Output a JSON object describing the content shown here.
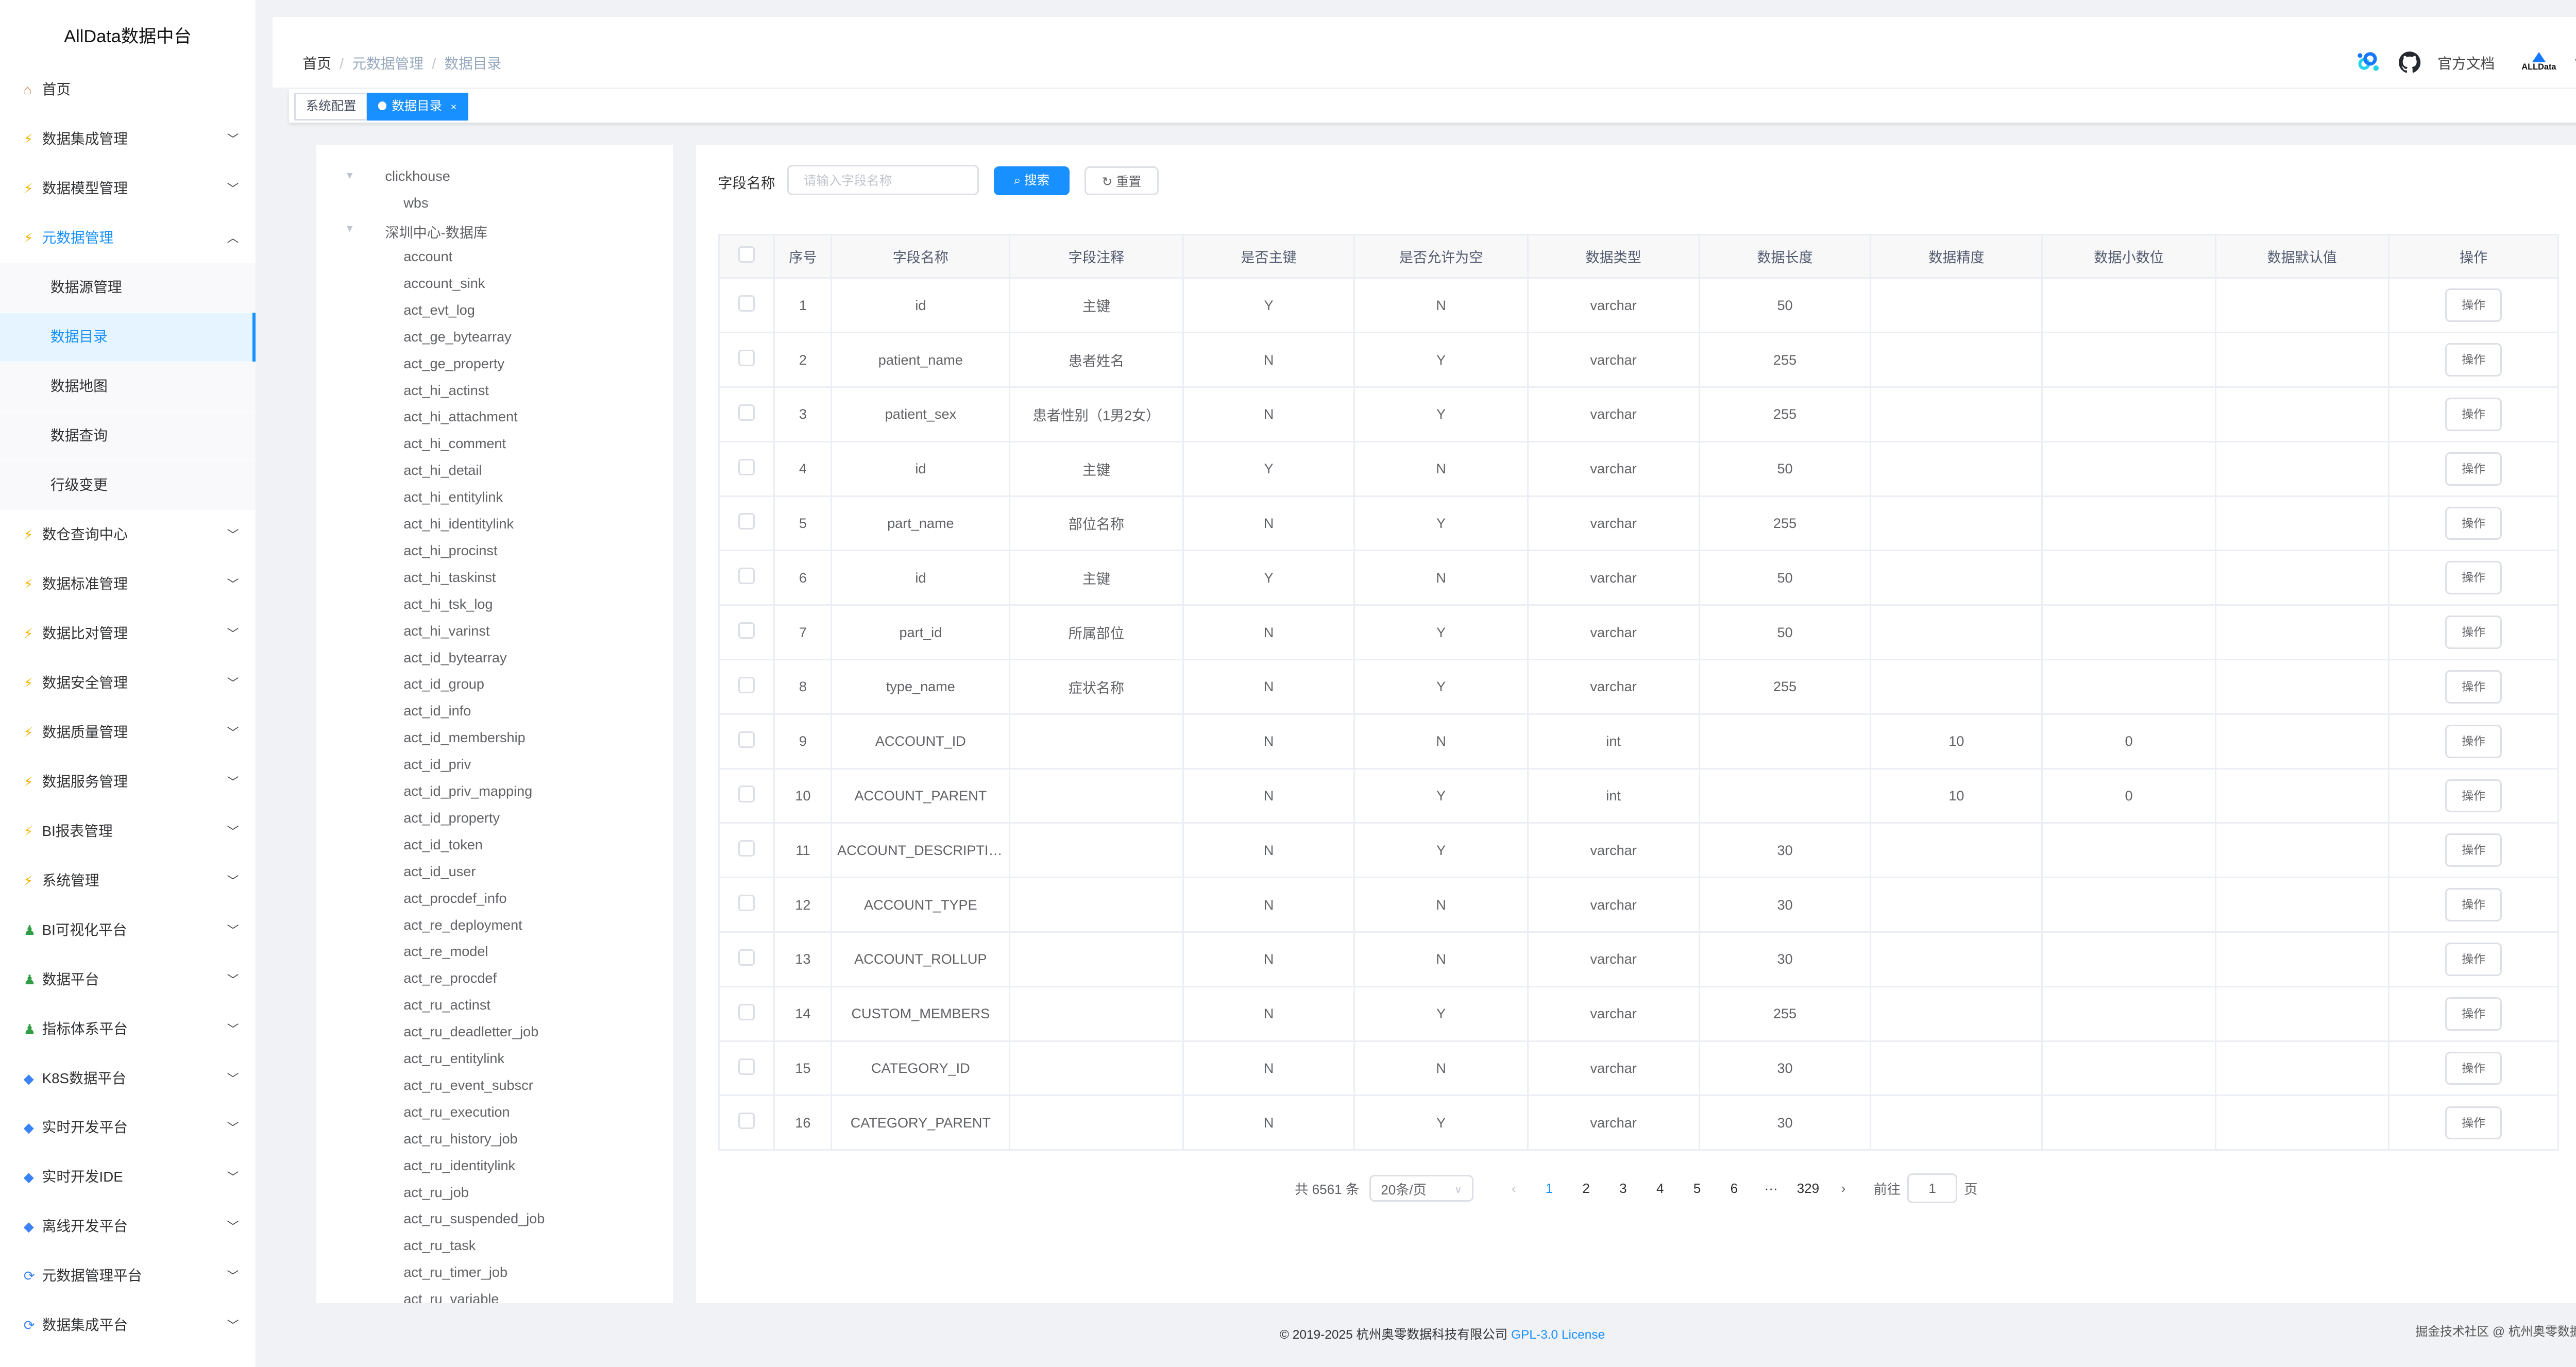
{
  "app": {
    "title": "AllData数据中台"
  },
  "sidebar": {
    "items": [
      {
        "label": "首页",
        "icon": "home-icon",
        "arrow": ""
      },
      {
        "label": "数据集成管理",
        "icon": "bolt-icon",
        "arrow": "down"
      },
      {
        "label": "数据模型管理",
        "icon": "bolt-icon",
        "arrow": "down"
      },
      {
        "label": "元数据管理",
        "icon": "bolt-icon",
        "arrow": "up",
        "active": true
      },
      {
        "label": "数据源管理",
        "sub": true
      },
      {
        "label": "数据目录",
        "sub": true,
        "active": true
      },
      {
        "label": "数据地图",
        "sub": true
      },
      {
        "label": "数据查询",
        "sub": true
      },
      {
        "label": "行级变更",
        "sub": true
      },
      {
        "label": "数仓查询中心",
        "icon": "bolt-icon",
        "arrow": "down"
      },
      {
        "label": "数据标准管理",
        "icon": "bolt-icon",
        "arrow": "down"
      },
      {
        "label": "数据比对管理",
        "icon": "bolt-icon",
        "arrow": "down"
      },
      {
        "label": "数据安全管理",
        "icon": "bolt-icon",
        "arrow": "down"
      },
      {
        "label": "数据质量管理",
        "icon": "bolt-icon",
        "arrow": "down"
      },
      {
        "label": "数据服务管理",
        "icon": "bolt-icon",
        "arrow": "down"
      },
      {
        "label": "BI报表管理",
        "icon": "bolt-icon",
        "arrow": "down"
      },
      {
        "label": "系统管理",
        "icon": "bolt-icon",
        "arrow": "down"
      },
      {
        "label": "BI可视化平台",
        "icon": "person-icon",
        "arrow": "down"
      },
      {
        "label": "数据平台",
        "icon": "person-icon",
        "arrow": "down"
      },
      {
        "label": "指标体系平台",
        "icon": "person-icon",
        "arrow": "down"
      },
      {
        "label": "K8S数据平台",
        "icon": "gem-icon",
        "arrow": "down"
      },
      {
        "label": "实时开发平台",
        "icon": "gem-icon",
        "arrow": "down"
      },
      {
        "label": "实时开发IDE",
        "icon": "gem-icon",
        "arrow": "down"
      },
      {
        "label": "离线开发平台",
        "icon": "gem-icon",
        "arrow": "down"
      },
      {
        "label": "元数据管理平台",
        "icon": "refresh-icon",
        "arrow": "down"
      },
      {
        "label": "数据集成平台",
        "icon": "refresh-icon",
        "arrow": "down"
      }
    ]
  },
  "header": {
    "breadcrumb": [
      "首页",
      "元数据管理",
      "数据目录"
    ],
    "docs_label": "官方文档",
    "logo_text": "ALLData"
  },
  "tags": [
    {
      "label": "系统配置",
      "active": false
    },
    {
      "label": "数据目录",
      "active": true,
      "close": "×"
    }
  ],
  "tree": {
    "nodes": [
      {
        "label": "clickhouse",
        "level": 0
      },
      {
        "label": "wbs",
        "level": 1
      },
      {
        "label": "深圳中心-数据库",
        "level": 0
      },
      {
        "label": "account",
        "level": 1
      },
      {
        "label": "account_sink",
        "level": 1
      },
      {
        "label": "act_evt_log",
        "level": 1
      },
      {
        "label": "act_ge_bytearray",
        "level": 1
      },
      {
        "label": "act_ge_property",
        "level": 1
      },
      {
        "label": "act_hi_actinst",
        "level": 1
      },
      {
        "label": "act_hi_attachment",
        "level": 1
      },
      {
        "label": "act_hi_comment",
        "level": 1
      },
      {
        "label": "act_hi_detail",
        "level": 1
      },
      {
        "label": "act_hi_entitylink",
        "level": 1
      },
      {
        "label": "act_hi_identitylink",
        "level": 1
      },
      {
        "label": "act_hi_procinst",
        "level": 1
      },
      {
        "label": "act_hi_taskinst",
        "level": 1
      },
      {
        "label": "act_hi_tsk_log",
        "level": 1
      },
      {
        "label": "act_hi_varinst",
        "level": 1
      },
      {
        "label": "act_id_bytearray",
        "level": 1
      },
      {
        "label": "act_id_group",
        "level": 1
      },
      {
        "label": "act_id_info",
        "level": 1
      },
      {
        "label": "act_id_membership",
        "level": 1
      },
      {
        "label": "act_id_priv",
        "level": 1
      },
      {
        "label": "act_id_priv_mapping",
        "level": 1
      },
      {
        "label": "act_id_property",
        "level": 1
      },
      {
        "label": "act_id_token",
        "level": 1
      },
      {
        "label": "act_id_user",
        "level": 1
      },
      {
        "label": "act_procdef_info",
        "level": 1
      },
      {
        "label": "act_re_deployment",
        "level": 1
      },
      {
        "label": "act_re_model",
        "level": 1
      },
      {
        "label": "act_re_procdef",
        "level": 1
      },
      {
        "label": "act_ru_actinst",
        "level": 1
      },
      {
        "label": "act_ru_deadletter_job",
        "level": 1
      },
      {
        "label": "act_ru_entitylink",
        "level": 1
      },
      {
        "label": "act_ru_event_subscr",
        "level": 1
      },
      {
        "label": "act_ru_execution",
        "level": 1
      },
      {
        "label": "act_ru_history_job",
        "level": 1
      },
      {
        "label": "act_ru_identitylink",
        "level": 1
      },
      {
        "label": "act_ru_job",
        "level": 1
      },
      {
        "label": "act_ru_suspended_job",
        "level": 1
      },
      {
        "label": "act_ru_task",
        "level": 1
      },
      {
        "label": "act_ru_timer_job",
        "level": 1
      },
      {
        "label": "act_ru_variable",
        "level": 1
      }
    ]
  },
  "search": {
    "label": "字段名称",
    "placeholder": "请输入字段名称",
    "search_label": "搜索",
    "reset_label": "重置"
  },
  "table": {
    "columns": [
      "",
      "序号",
      "字段名称",
      "字段注释",
      "是否主键",
      "是否允许为空",
      "数据类型",
      "数据长度",
      "数据精度",
      "数据小数位",
      "数据默认值",
      "操作"
    ],
    "action_label": "操作",
    "rows": [
      [
        "1",
        "id",
        "主键",
        "Y",
        "N",
        "varchar",
        "50",
        "",
        "",
        ""
      ],
      [
        "2",
        "patient_name",
        "患者姓名",
        "N",
        "Y",
        "varchar",
        "255",
        "",
        "",
        ""
      ],
      [
        "3",
        "patient_sex",
        "患者性别（1男2女）",
        "N",
        "Y",
        "varchar",
        "255",
        "",
        "",
        ""
      ],
      [
        "4",
        "id",
        "主键",
        "Y",
        "N",
        "varchar",
        "50",
        "",
        "",
        ""
      ],
      [
        "5",
        "part_name",
        "部位名称",
        "N",
        "Y",
        "varchar",
        "255",
        "",
        "",
        ""
      ],
      [
        "6",
        "id",
        "主键",
        "Y",
        "N",
        "varchar",
        "50",
        "",
        "",
        ""
      ],
      [
        "7",
        "part_id",
        "所属部位",
        "N",
        "Y",
        "varchar",
        "50",
        "",
        "",
        ""
      ],
      [
        "8",
        "type_name",
        "症状名称",
        "N",
        "Y",
        "varchar",
        "255",
        "",
        "",
        ""
      ],
      [
        "9",
        "ACCOUNT_ID",
        "",
        "N",
        "N",
        "int",
        "",
        "10",
        "0",
        ""
      ],
      [
        "10",
        "ACCOUNT_PARENT",
        "",
        "N",
        "Y",
        "int",
        "",
        "10",
        "0",
        ""
      ],
      [
        "11",
        "ACCOUNT_DESCRIPTION",
        "",
        "N",
        "Y",
        "varchar",
        "30",
        "",
        "",
        ""
      ],
      [
        "12",
        "ACCOUNT_TYPE",
        "",
        "N",
        "N",
        "varchar",
        "30",
        "",
        "",
        ""
      ],
      [
        "13",
        "ACCOUNT_ROLLUP",
        "",
        "N",
        "N",
        "varchar",
        "30",
        "",
        "",
        ""
      ],
      [
        "14",
        "CUSTOM_MEMBERS",
        "",
        "N",
        "Y",
        "varchar",
        "255",
        "",
        "",
        ""
      ],
      [
        "15",
        "CATEGORY_ID",
        "",
        "N",
        "N",
        "varchar",
        "30",
        "",
        "",
        ""
      ],
      [
        "16",
        "CATEGORY_PARENT",
        "",
        "N",
        "Y",
        "varchar",
        "30",
        "",
        "",
        ""
      ]
    ]
  },
  "pagination": {
    "total": "共 6561 条",
    "page_size": "20条/页",
    "pages": [
      "1",
      "2",
      "3",
      "4",
      "5",
      "6",
      "···",
      "329"
    ],
    "current": "1",
    "goto_label": "前往",
    "goto_value": "1",
    "page_suffix": "页"
  },
  "footer": {
    "copyright": "© 2019-2025 杭州奥零数据科技有限公司 ",
    "license": "GPL-3.0 License",
    "watermark": "掘金技术社区 @ 杭州奥零数据科技"
  },
  "colors": {
    "primary": "#1890ff",
    "sidebar_active_bg": "#e6f4ff",
    "background": "#f0f2f5"
  }
}
